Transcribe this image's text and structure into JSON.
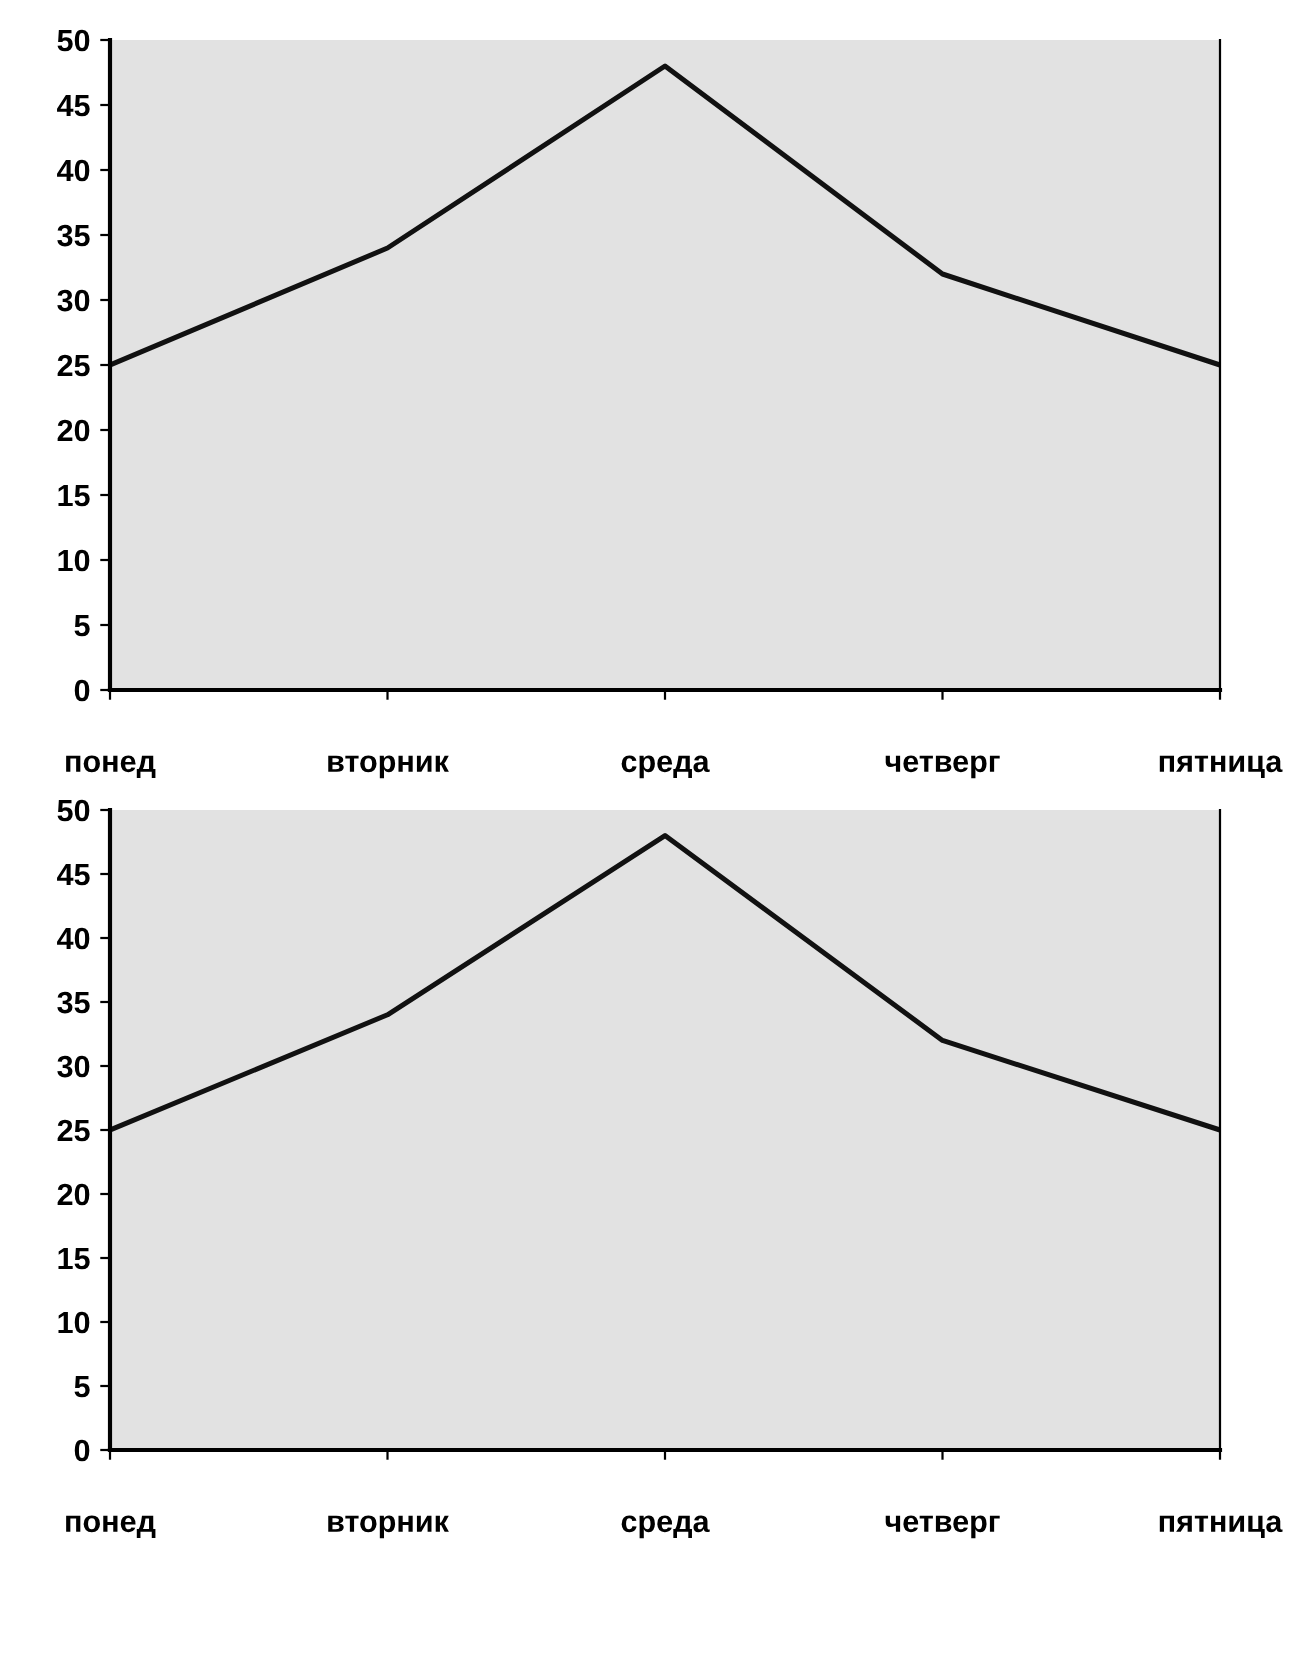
{
  "chart_data": [
    {
      "type": "line",
      "categories": [
        "понед",
        "вторник",
        "среда",
        "четверг",
        "пятница"
      ],
      "series": [
        {
          "color": "#111111",
          "values": [
            25,
            34,
            48,
            32,
            25
          ]
        }
      ],
      "ylim": [
        0,
        50
      ],
      "yticks": [
        0,
        5,
        10,
        15,
        20,
        25,
        30,
        35,
        40,
        45,
        50
      ],
      "grid": false,
      "legend": false,
      "marker": "none",
      "line_style": "solid"
    },
    {
      "type": "line",
      "categories": [
        "понед",
        "вторник",
        "среда",
        "четверг",
        "пятница"
      ],
      "series": [
        {
          "color": "#111111",
          "values": [
            25,
            34,
            48,
            32,
            25
          ]
        }
      ],
      "ylim": [
        0,
        50
      ],
      "yticks": [
        0,
        5,
        10,
        15,
        20,
        25,
        30,
        35,
        40,
        45,
        50
      ],
      "grid": false,
      "legend": false,
      "marker": "none",
      "line_style": "solid"
    }
  ]
}
